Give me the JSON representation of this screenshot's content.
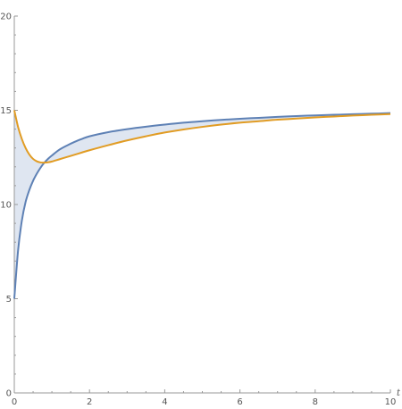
{
  "chart_data": {
    "type": "line",
    "title": "",
    "xlabel": "t",
    "ylabel": "",
    "xlim": [
      0,
      10
    ],
    "ylim": [
      0,
      20
    ],
    "x_ticks": [
      {
        "value": 0,
        "label": "0"
      },
      {
        "value": 2,
        "label": "2"
      },
      {
        "value": 4,
        "label": "4"
      },
      {
        "value": 6,
        "label": "6"
      },
      {
        "value": 8,
        "label": "8"
      },
      {
        "value": 10,
        "label": "10"
      }
    ],
    "y_ticks": [
      {
        "value": 0,
        "label": "0"
      },
      {
        "value": 5,
        "label": "5"
      },
      {
        "value": 10,
        "label": "10"
      },
      {
        "value": 15,
        "label": "15"
      },
      {
        "value": 20,
        "label": "20"
      }
    ],
    "grid": false,
    "fill_between_series": true,
    "x": [
      0,
      0.1,
      0.2,
      0.3,
      0.4,
      0.5,
      0.6,
      0.7,
      0.8,
      0.9,
      1,
      1.2,
      1.4,
      1.6,
      1.8,
      2,
      2.5,
      3,
      3.5,
      4,
      4.5,
      5,
      5.5,
      6,
      6.5,
      7,
      7.5,
      8,
      8.5,
      9,
      9.5,
      10
    ],
    "series": [
      {
        "color": "#5e81b5",
        "values": [
          5.0,
          7.55,
          9.13,
          10.13,
          10.77,
          11.26,
          11.64,
          11.96,
          12.22,
          12.43,
          12.6,
          12.91,
          13.13,
          13.32,
          13.48,
          13.62,
          13.84,
          14.0,
          14.13,
          14.24,
          14.34,
          14.42,
          14.49,
          14.55,
          14.6,
          14.65,
          14.69,
          14.73,
          14.76,
          14.79,
          14.82,
          14.85
        ]
      },
      {
        "color": "#e19c24",
        "values": [
          15.0,
          14.12,
          13.48,
          13.0,
          12.65,
          12.42,
          12.29,
          12.23,
          12.22,
          12.24,
          12.28,
          12.4,
          12.52,
          12.64,
          12.76,
          12.88,
          13.15,
          13.4,
          13.62,
          13.82,
          13.98,
          14.12,
          14.24,
          14.34,
          14.42,
          14.5,
          14.56,
          14.62,
          14.67,
          14.72,
          14.76,
          14.8
        ]
      }
    ],
    "fill_color": "#dfe6f1"
  }
}
